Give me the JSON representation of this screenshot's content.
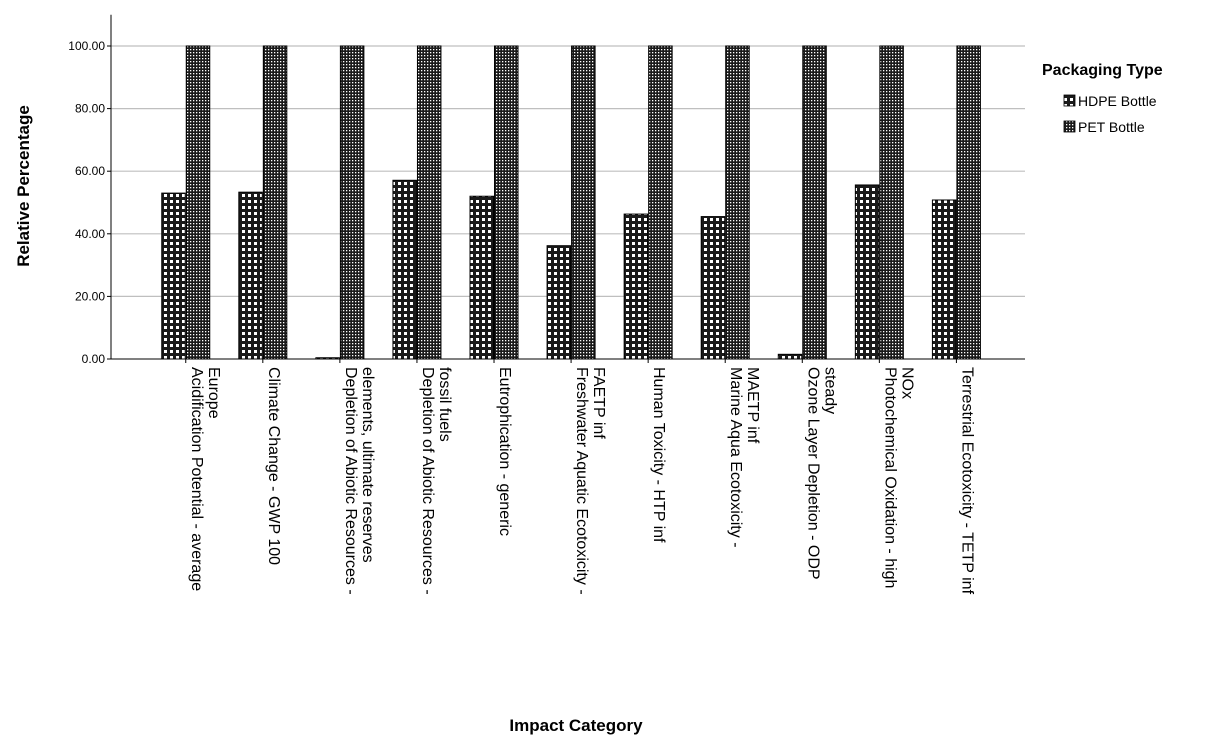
{
  "chart_data": {
    "type": "bar",
    "xlabel": "Impact Category",
    "ylabel": "Relative Percentage",
    "ylim": [
      0,
      110
    ],
    "yticks": [
      "0.00",
      "20.00",
      "40.00",
      "60.00",
      "80.00",
      "100.00"
    ],
    "grid": true,
    "legend": {
      "title": "Packaging Type",
      "placement": "right"
    },
    "categories": [
      [
        "Acidification Potential - average",
        "Europe"
      ],
      [
        "Climate Change - GWP 100"
      ],
      [
        "Depletion of Abiotic Resources -",
        "elements, ultimate reserves"
      ],
      [
        "Depletion of Abiotic Resources -",
        "fossil fuels"
      ],
      [
        "Eutrophication - generic"
      ],
      [
        "Freshwater Aquatic Ecotoxicity -",
        "FAETP inf"
      ],
      [
        "Human Toxicity - HTP inf"
      ],
      [
        "Marine Aqua Ecotoxicity -",
        "MAETP inf"
      ],
      [
        "Ozone Layer Depletion - ODP",
        "steady"
      ],
      [
        "Photochemical Oxidation - high",
        "NOx"
      ],
      [
        "Terrestrial Ecotoxicity - TETP inf"
      ]
    ],
    "series": [
      {
        "name": "HDPE Bottle",
        "pattern": "coarse-grid",
        "values": [
          53,
          53.3,
          0.4,
          57.1,
          52,
          36.2,
          46.3,
          45.5,
          1.5,
          55.6,
          50.8
        ]
      },
      {
        "name": "PET Bottle",
        "pattern": "fine-grid",
        "values": [
          100,
          100,
          100,
          100,
          100,
          100,
          100,
          100,
          100,
          100,
          100
        ]
      }
    ]
  },
  "colors": {
    "bar_fill": "#1a1a1a",
    "pattern_line": "#ffffff",
    "grid": "#bfbfbf",
    "axis": "#000000"
  }
}
